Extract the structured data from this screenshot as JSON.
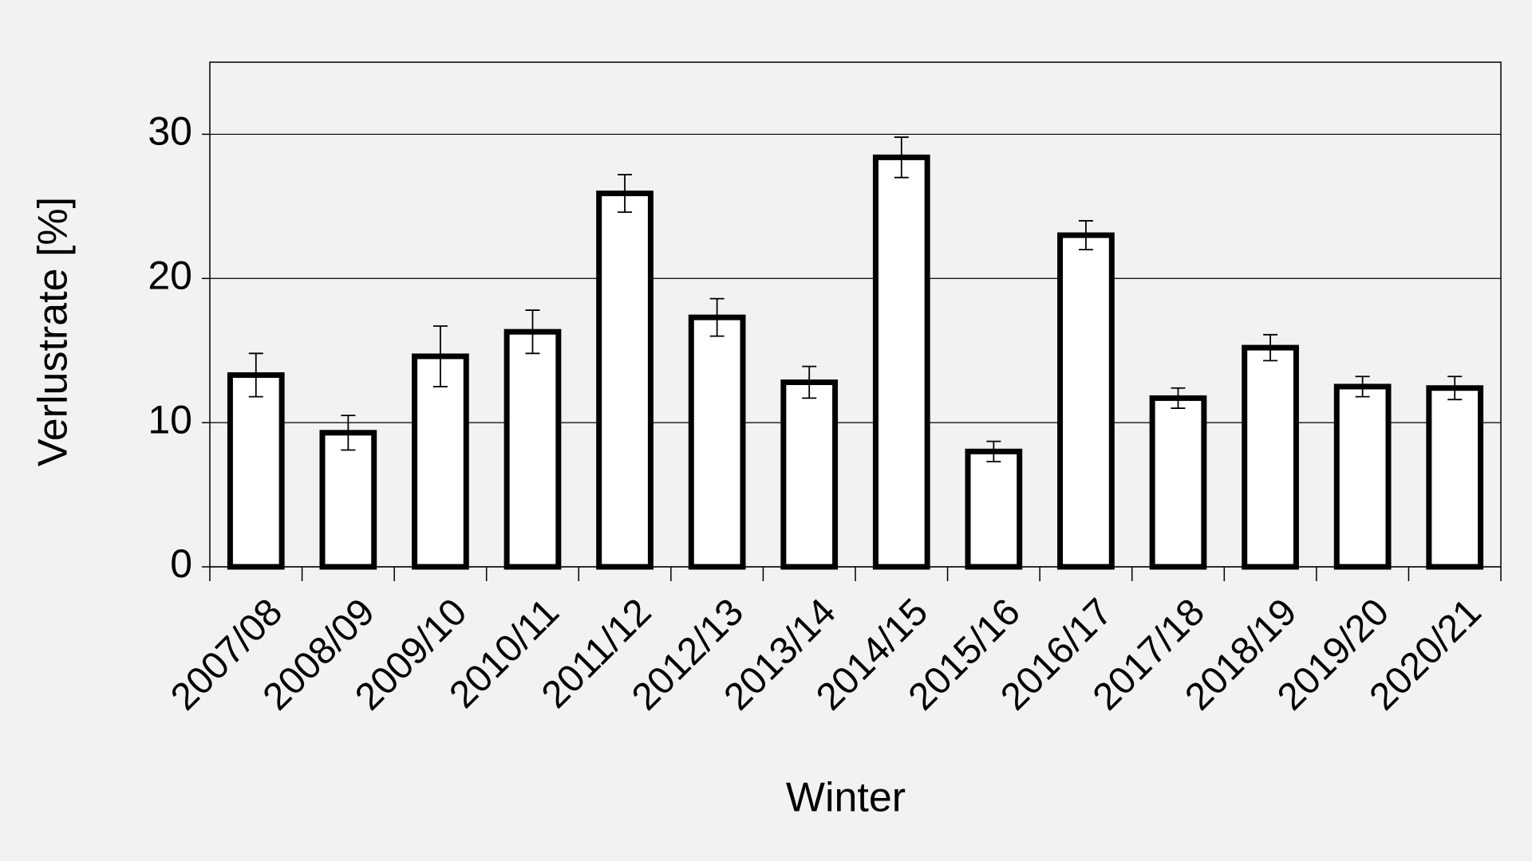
{
  "chart_data": {
    "type": "bar",
    "x_label": "Winter",
    "y_label": "Verlustrate [%]",
    "categories": [
      "2007/08",
      "2008/09",
      "2009/10",
      "2010/11",
      "2011/12",
      "2012/13",
      "2013/14",
      "2014/15",
      "2015/16",
      "2016/17",
      "2017/18",
      "2018/19",
      "2019/20",
      "2020/21"
    ],
    "values": [
      13.3,
      9.3,
      14.6,
      16.3,
      25.9,
      17.3,
      12.8,
      28.4,
      8.0,
      23.0,
      11.7,
      15.2,
      12.5,
      12.4
    ],
    "errors": [
      1.5,
      1.2,
      2.1,
      1.5,
      1.3,
      1.3,
      1.1,
      1.4,
      0.7,
      1.0,
      0.7,
      0.9,
      0.7,
      0.8
    ],
    "color": "#ffffff",
    "edge_color": "#000000",
    "ylim": [
      0,
      35
    ],
    "yticks": [
      0,
      10,
      20,
      30
    ],
    "grid": true
  }
}
